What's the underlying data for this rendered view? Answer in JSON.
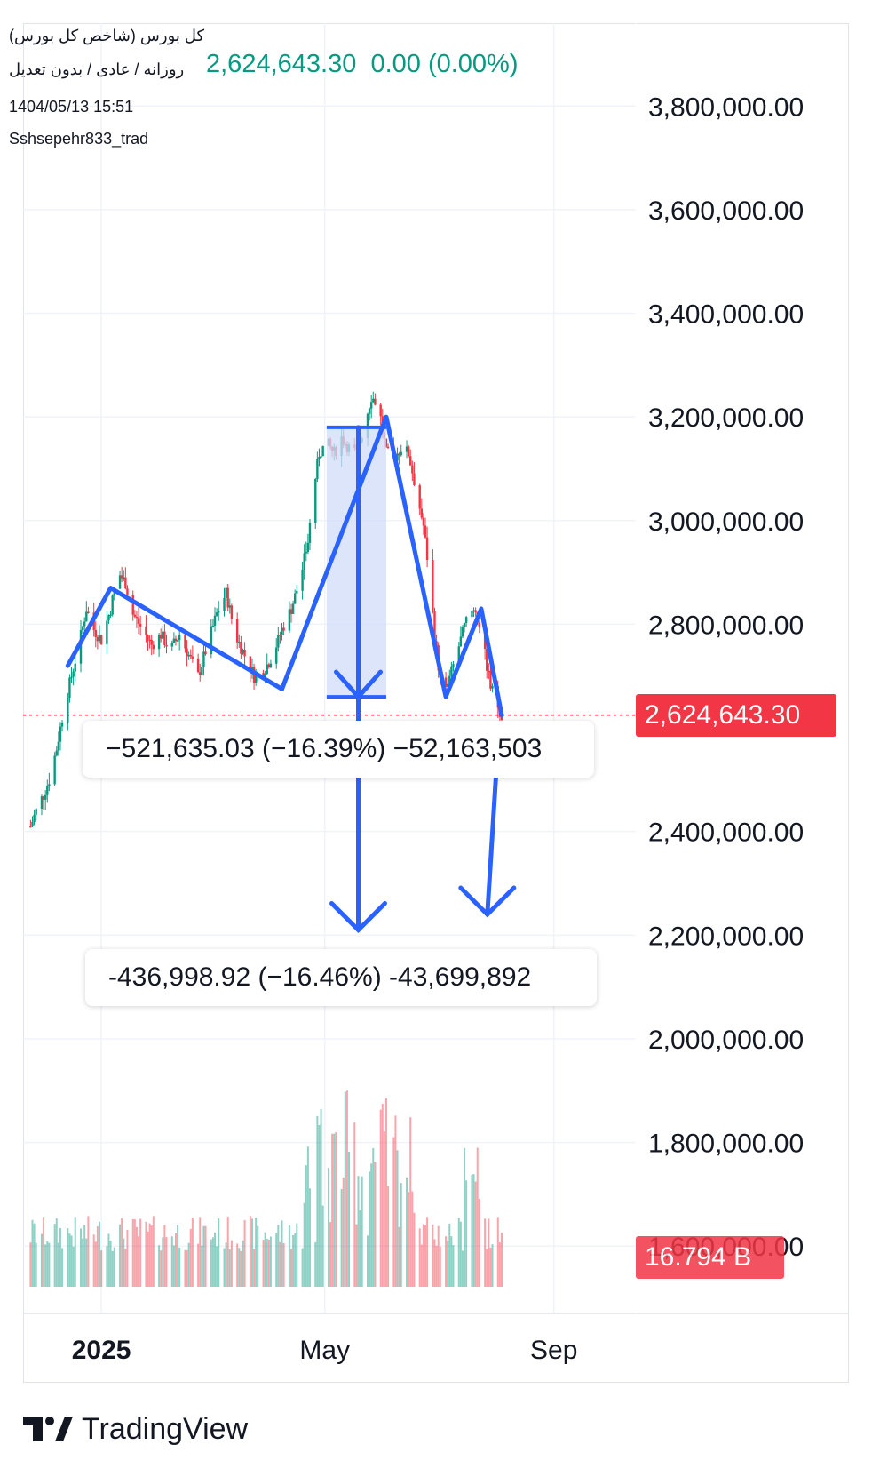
{
  "header": {
    "symbol": "کل بورس (شاخص کل بورس)",
    "interval": "روزانه / عادی / بدون تعدیل",
    "last_price": "2,624,643.30",
    "change": "0.00 (0.00%)",
    "datetime": "1404/05/13 15:51",
    "author": "Sshsepehr833_trad"
  },
  "colors": {
    "up": "#089981",
    "down": "#f23645",
    "drawing": "#2962ff",
    "grid": "#f0f3fa",
    "price_line": "#f23645",
    "measure_fill": "#d1dcf9"
  },
  "price_tag": "2,624,643.30",
  "volume_tag": "16.794 B",
  "measure_labels": {
    "top": "−521,635.03 (−16.39%) −52,163,503",
    "bottom": "-436,998.92 (−16.46%) -43,699,892"
  },
  "brand": {
    "logo_icon": "tradingview-logo-icon",
    "name": "TradingView"
  },
  "chart_data": {
    "type": "candlestick",
    "y_axis_ticks": [
      "3,800,000.00",
      "3,600,000.00",
      "3,400,000.00",
      "3,200,000.00",
      "3,000,000.00",
      "2,800,000.00",
      "2,400,000.00",
      "2,200,000.00",
      "2,000,000.00",
      "1,800,000.00",
      "1,600,000.00"
    ],
    "x_axis_ticks": [
      "2025",
      "May",
      "Sep"
    ],
    "ylim": [
      1470000,
      3960000
    ],
    "x_range": [
      "2024-11-20",
      "2025-10-15"
    ],
    "last_price": 2624643.3,
    "last_volume_billions": 16.794,
    "price_path": [
      [
        "2024-11-24",
        2410000
      ],
      [
        "2024-11-28",
        2450000
      ],
      [
        "2024-12-01",
        2470000
      ],
      [
        "2024-12-04",
        2500000
      ],
      [
        "2024-12-08",
        2560000
      ],
      [
        "2024-12-12",
        2640000
      ],
      [
        "2024-12-16",
        2700000
      ],
      [
        "2024-12-20",
        2760000
      ],
      [
        "2024-12-24",
        2830000
      ],
      [
        "2024-12-28",
        2790000
      ],
      [
        "2025-01-01",
        2770000
      ],
      [
        "2025-01-06",
        2830000
      ],
      [
        "2025-01-10",
        2900000
      ],
      [
        "2025-01-14",
        2880000
      ],
      [
        "2025-01-18",
        2820000
      ],
      [
        "2025-01-23",
        2790000
      ],
      [
        "2025-01-28",
        2760000
      ],
      [
        "2025-02-02",
        2780000
      ],
      [
        "2025-02-07",
        2750000
      ],
      [
        "2025-02-12",
        2780000
      ],
      [
        "2025-02-17",
        2740000
      ],
      [
        "2025-02-22",
        2700000
      ],
      [
        "2025-02-27",
        2760000
      ],
      [
        "2025-03-04",
        2820000
      ],
      [
        "2025-03-09",
        2860000
      ],
      [
        "2025-03-14",
        2780000
      ],
      [
        "2025-03-19",
        2740000
      ],
      [
        "2025-03-24",
        2700000
      ],
      [
        "2025-03-29",
        2710000
      ],
      [
        "2025-04-03",
        2740000
      ],
      [
        "2025-04-08",
        2790000
      ],
      [
        "2025-04-13",
        2830000
      ],
      [
        "2025-04-18",
        2890000
      ],
      [
        "2025-04-22",
        2960000
      ],
      [
        "2025-04-25",
        3060000
      ],
      [
        "2025-04-28",
        3130000
      ],
      [
        "2025-05-02",
        3150000
      ],
      [
        "2025-05-06",
        3130000
      ],
      [
        "2025-05-10",
        3160000
      ],
      [
        "2025-05-14",
        3140000
      ],
      [
        "2025-05-18",
        3130000
      ],
      [
        "2025-05-22",
        3180000
      ],
      [
        "2025-05-26",
        3240000
      ],
      [
        "2025-05-30",
        3220000
      ],
      [
        "2025-06-03",
        3130000
      ],
      [
        "2025-06-07",
        3120000
      ],
      [
        "2025-06-11",
        3140000
      ],
      [
        "2025-06-15",
        3130000
      ],
      [
        "2025-06-19",
        3060000
      ],
      [
        "2025-06-23",
        2990000
      ],
      [
        "2025-06-26",
        2900000
      ],
      [
        "2025-06-29",
        2780000
      ],
      [
        "2025-07-02",
        2690000
      ],
      [
        "2025-07-05",
        2670000
      ],
      [
        "2025-07-09",
        2720000
      ],
      [
        "2025-07-13",
        2770000
      ],
      [
        "2025-07-17",
        2820000
      ],
      [
        "2025-07-21",
        2830000
      ],
      [
        "2025-07-25",
        2760000
      ],
      [
        "2025-07-29",
        2680000
      ],
      [
        "2025-08-04",
        2624643
      ]
    ],
    "drawn_pattern": [
      [
        "2024-12-14",
        2720000
      ],
      [
        "2025-01-06",
        2870000
      ],
      [
        "2025-04-08",
        2675000
      ],
      [
        "2025-06-03",
        3200000
      ],
      [
        "2025-07-05",
        2660000
      ],
      [
        "2025-07-24",
        2830000
      ],
      [
        "2025-08-04",
        2624643
      ]
    ],
    "measure_range": {
      "from": "2025-05-02",
      "to": "2025-06-03",
      "high": 3180000,
      "low": 2660000
    },
    "projection_targets": [
      {
        "at": "2025-05-19",
        "from": 3180000,
        "to": 2210000
      },
      {
        "at": "2025-08-02",
        "from": 2570000,
        "to": 2240000
      }
    ],
    "grid": true
  }
}
